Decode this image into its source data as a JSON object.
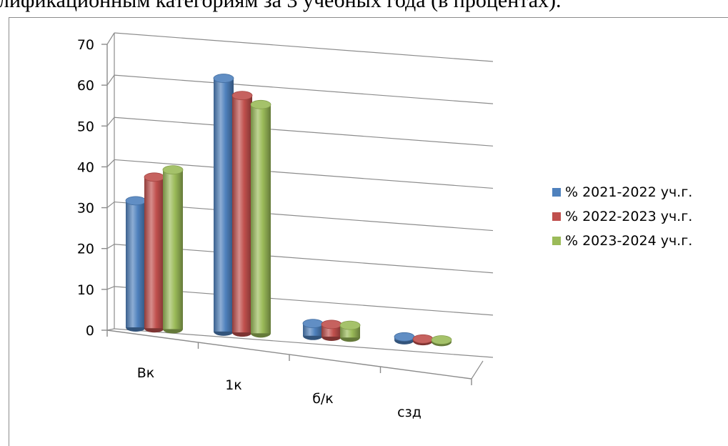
{
  "heading": "лификационным категориям за 3 учебных года (в процентах).",
  "chart_data": {
    "type": "bar",
    "categories": [
      "Вк",
      "1к",
      "б/к",
      "сзд"
    ],
    "series": [
      {
        "name": "% 2021-2022 уч.г.",
        "values": [
          31,
          62,
          3,
          0.8
        ],
        "color": "#4f81bd"
      },
      {
        "name": "% 2022-2023 уч.г.",
        "values": [
          37,
          58,
          3,
          0.5
        ],
        "color": "#c0504d"
      },
      {
        "name": "% 2023-2024 уч.г.",
        "values": [
          39,
          56,
          3,
          0.5
        ],
        "color": "#9bbb59"
      }
    ],
    "ylim": [
      0,
      70
    ],
    "yticks": [
      "0",
      "10",
      "20",
      "30",
      "40",
      "50",
      "60",
      "70"
    ],
    "grid": true,
    "legend": "right",
    "style": "3d-cylinder"
  }
}
